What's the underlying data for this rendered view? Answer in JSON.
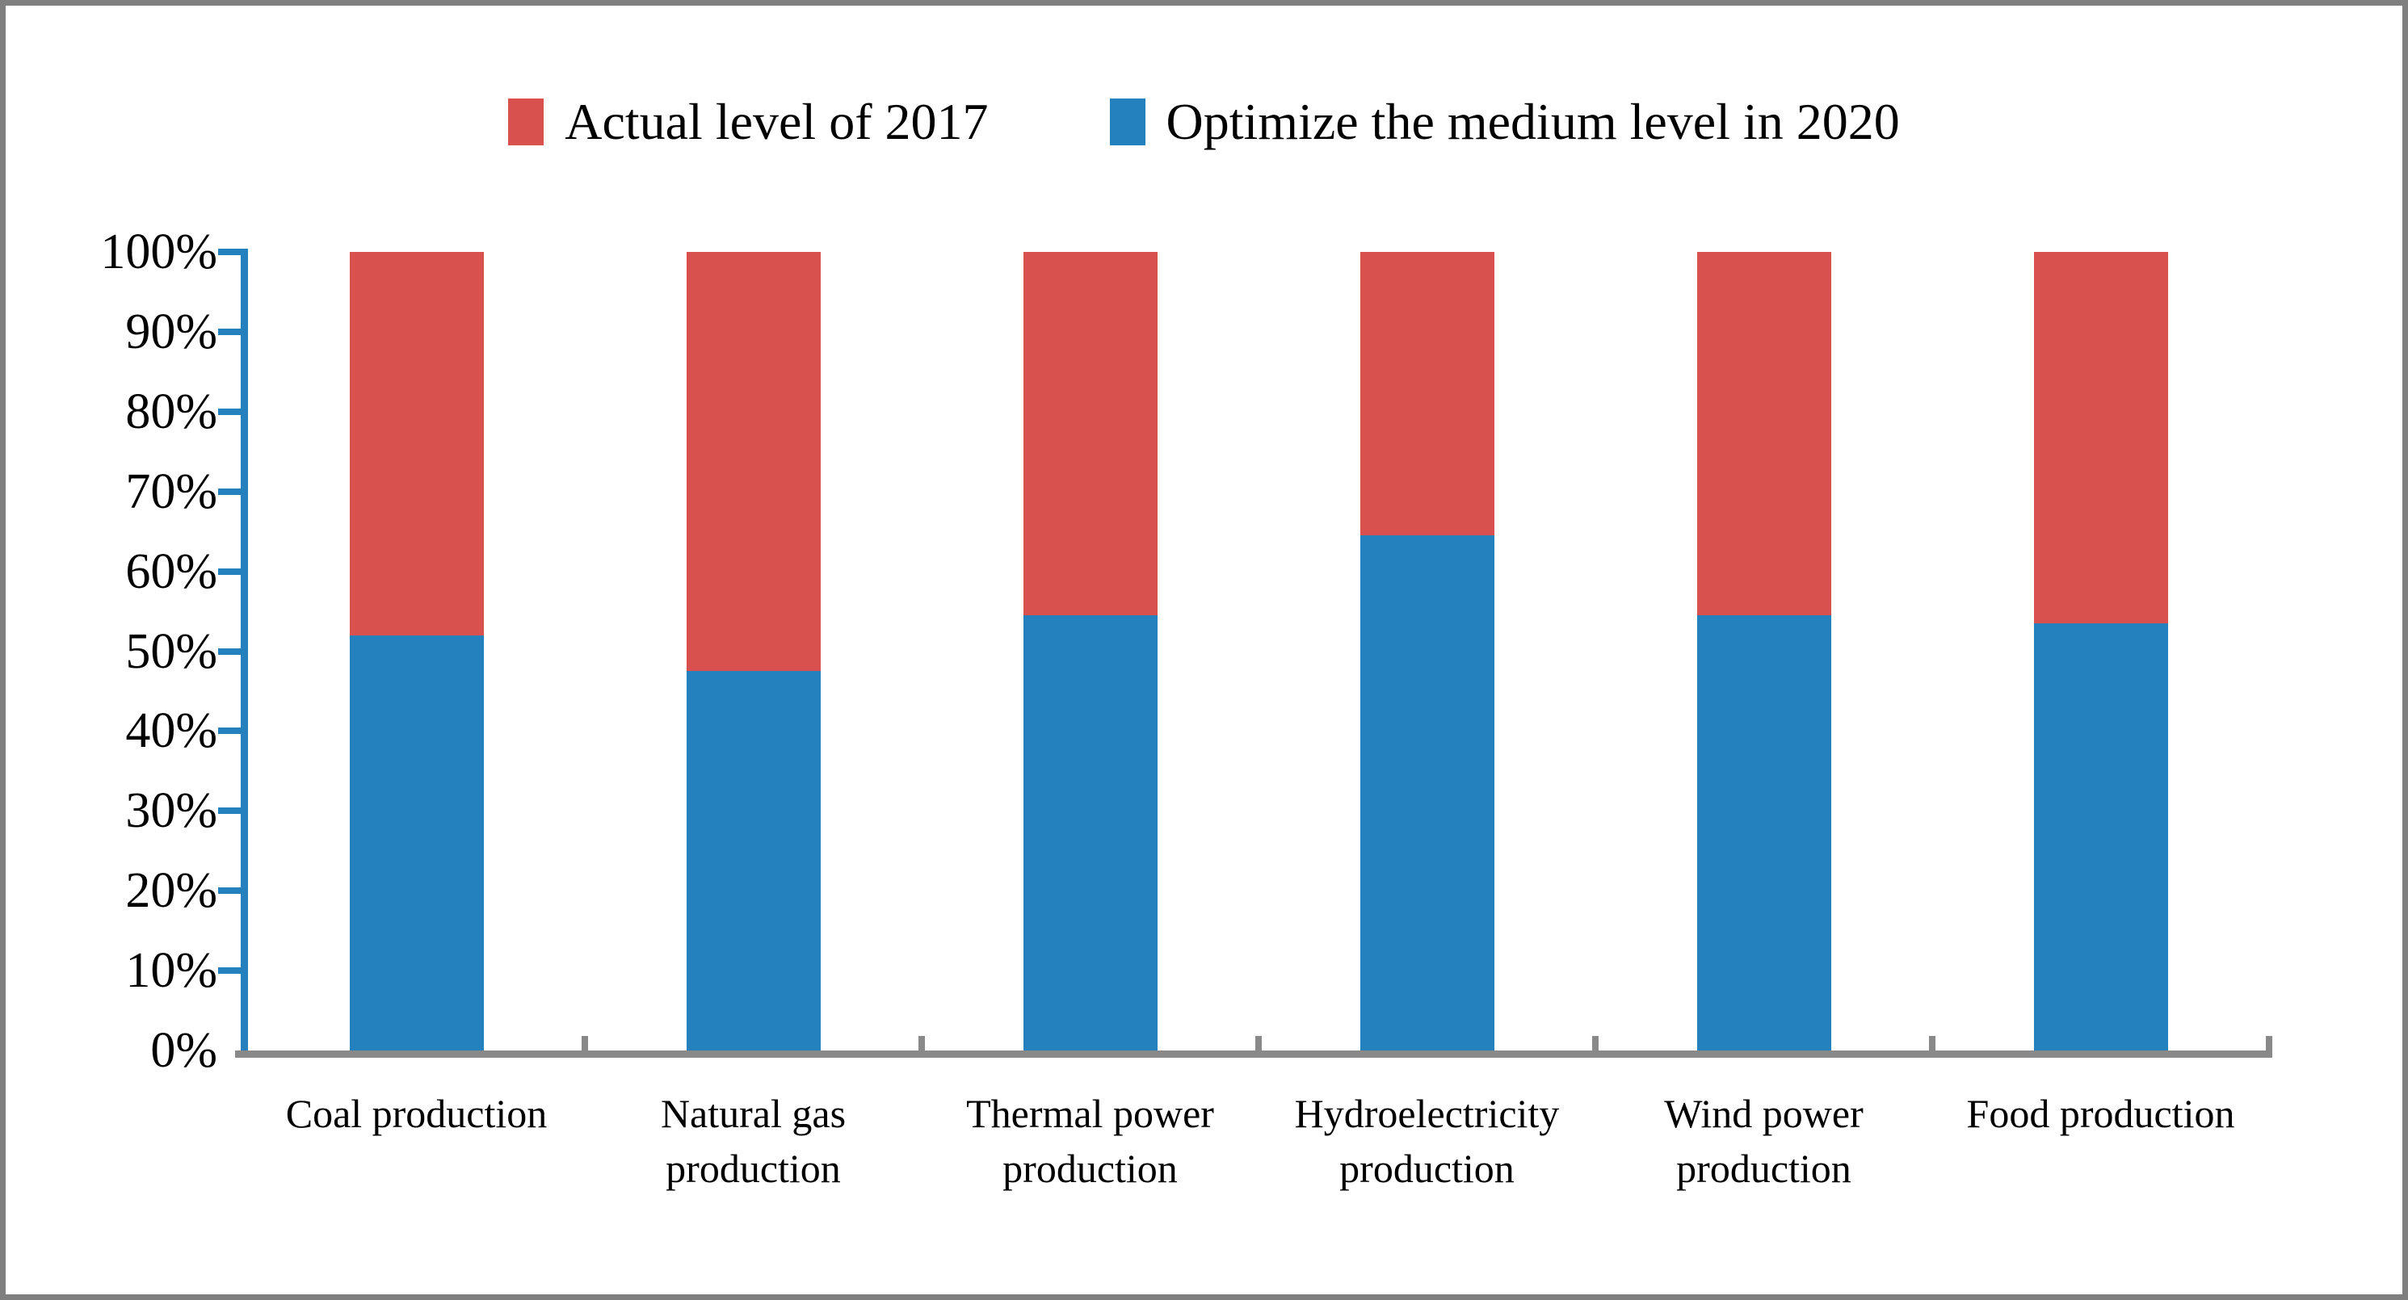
{
  "figure": {
    "colors": {
      "series_red": "#D9514F",
      "series_blue": "#2580BE",
      "axis_blue": "#2580BE",
      "axis_gray": "#898989",
      "frame_gray": "#7F7F7F"
    }
  },
  "chart_data": {
    "type": "bar",
    "subtype": "stacked-100-percent-column",
    "title": "",
    "xlabel": "",
    "ylabel": "",
    "ylim": [
      0,
      100
    ],
    "grid": false,
    "legend_position": "top",
    "categories": [
      "Coal production",
      "Natural gas production",
      "Thermal power production",
      "Hydroelectricity production",
      "Wind power production",
      "Food production"
    ],
    "series": [
      {
        "name": "Optimize the medium level in 2020",
        "color": "#2580BE",
        "stack_position": "bottom",
        "values": [
          52,
          47.5,
          54.5,
          64.5,
          54.5,
          53.5
        ]
      },
      {
        "name": "Actual level of 2017",
        "color": "#D9514F",
        "stack_position": "top",
        "values": [
          48,
          52.5,
          45.5,
          35.5,
          45.5,
          46.5
        ]
      }
    ],
    "legend": [
      {
        "label": "Actual level of 2017",
        "color": "#D9514F"
      },
      {
        "label": "Optimize the medium level in 2020",
        "color": "#2580BE"
      }
    ],
    "yticks": [
      "100%",
      "90%",
      "80%",
      "70%",
      "60%",
      "50%",
      "40%",
      "30%",
      "20%",
      "10%",
      "0%"
    ]
  }
}
